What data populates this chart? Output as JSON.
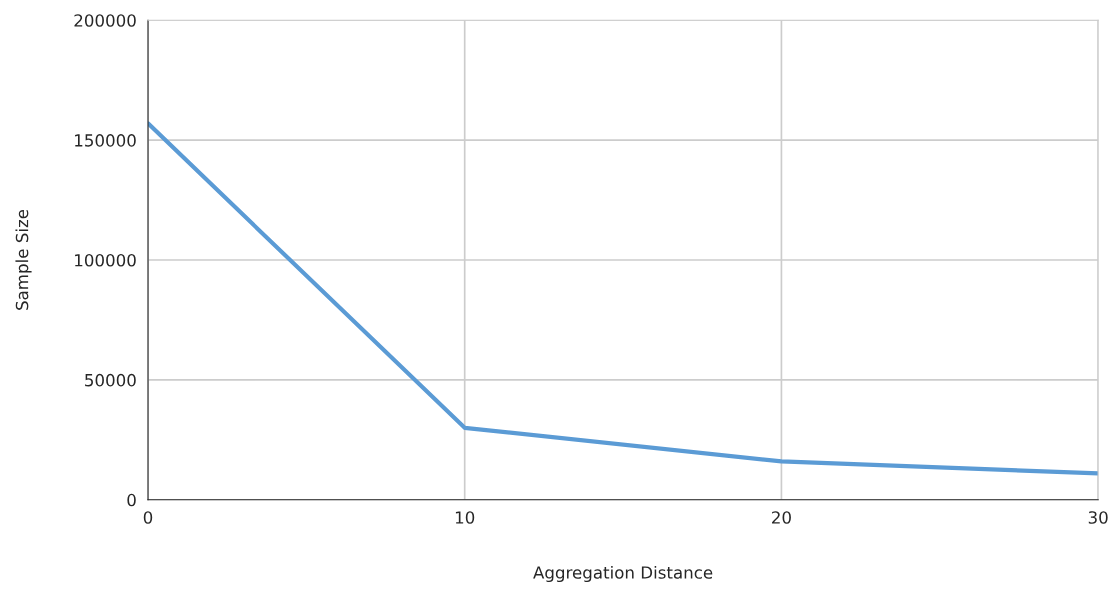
{
  "chart_data": {
    "type": "line",
    "xlabel": "Aggregation Distance",
    "ylabel": "Sample Size",
    "x": [
      0,
      10,
      20,
      30
    ],
    "series": [
      {
        "color": "#5b9bd5",
        "values": [
          157000,
          30000,
          16000,
          11000
        ]
      }
    ],
    "xlim": [
      0,
      30
    ],
    "xticks": [
      0,
      10,
      20,
      30
    ],
    "ylim": [
      0,
      200000
    ],
    "yticks": [
      0,
      50000,
      100000,
      150000,
      200000
    ],
    "grid": true,
    "marker": "none",
    "line_style": "solid"
  }
}
